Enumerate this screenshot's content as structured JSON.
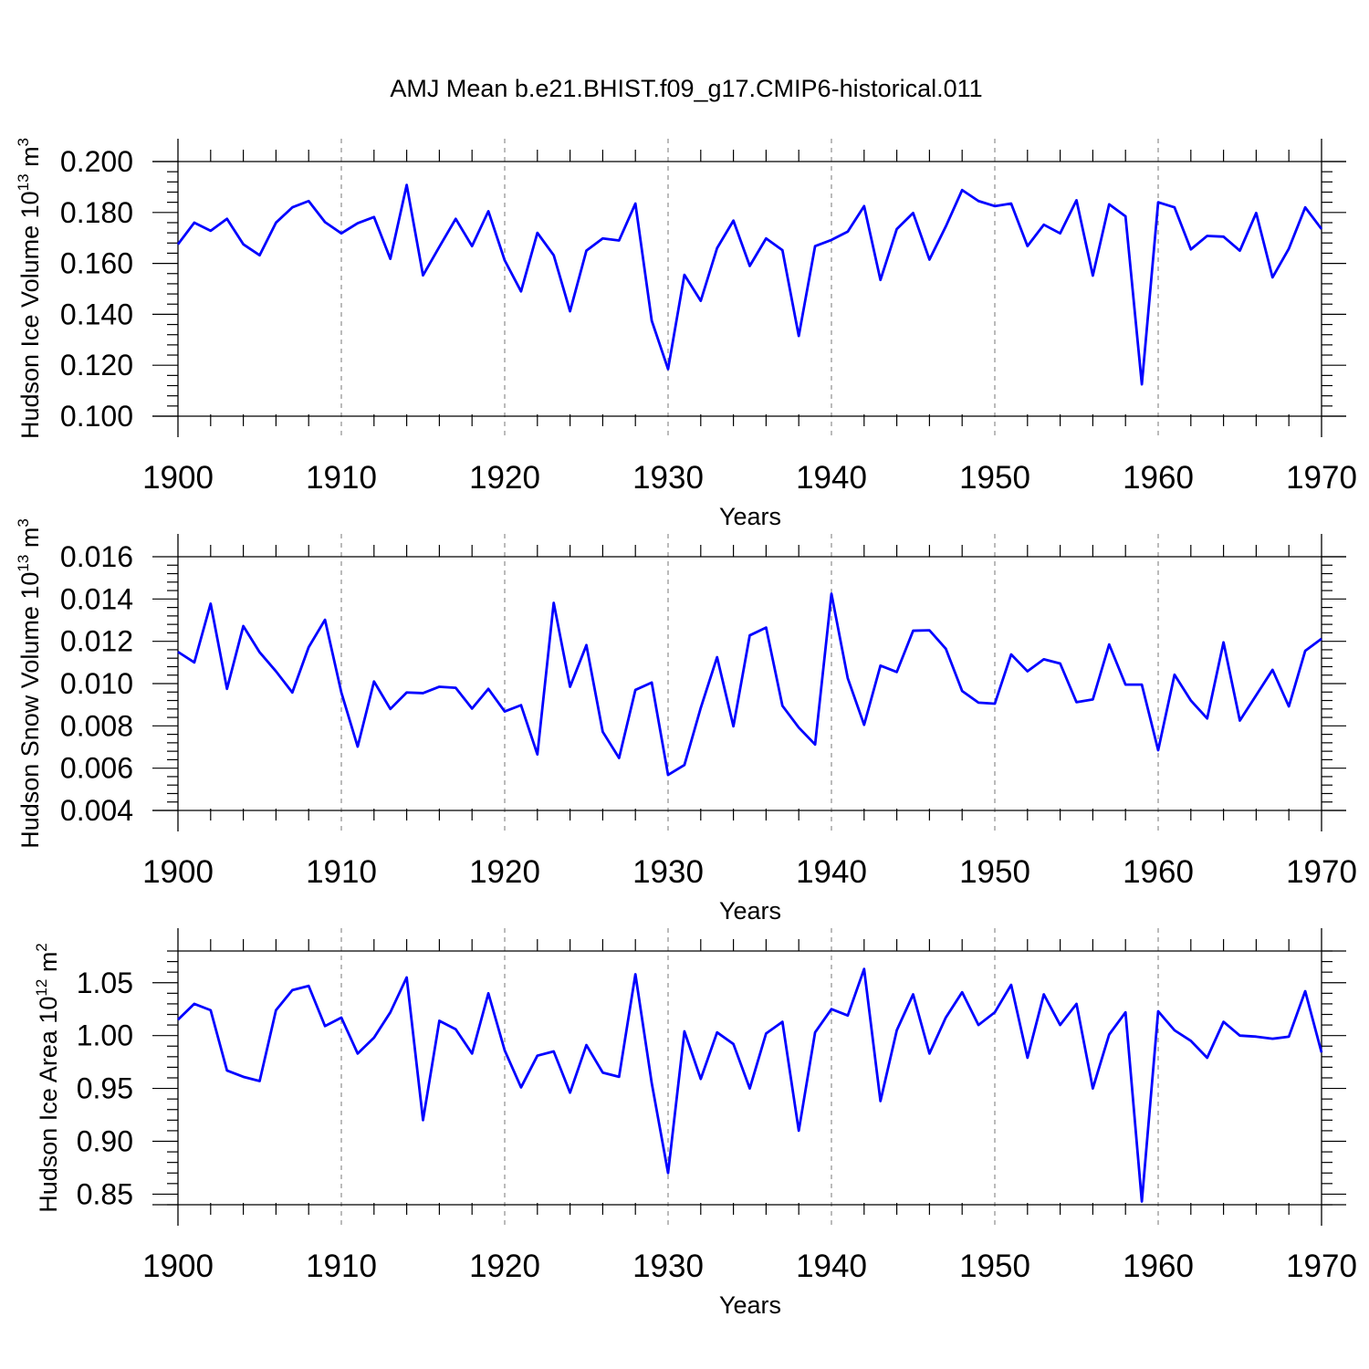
{
  "title": "AMJ Mean b.e21.BHIST.f09_g17.CMIP6-historical.011",
  "chart_data": [
    {
      "type": "line",
      "ylabel": "Hudson Ice Volume 10",
      "ylabel_exp": "13",
      "ylabel_unit": " m",
      "ylabel_unit_exp": "3",
      "xlabel": "Years",
      "xlim": [
        1900,
        1970
      ],
      "ylim": [
        0.1,
        0.2
      ],
      "x_ticks": [
        "1900",
        "1910",
        "1920",
        "1930",
        "1940",
        "1950",
        "1960",
        "1970"
      ],
      "y_ticks": [
        "0.100",
        "0.120",
        "0.140",
        "0.160",
        "0.180",
        "0.200"
      ],
      "y_tick_values": [
        0.1,
        0.12,
        0.14,
        0.16,
        0.18,
        0.2
      ],
      "grid": "vertical dashed at decades",
      "series": [
        {
          "name": "ice_volume",
          "color": "#0000ff",
          "x_start": 1900,
          "values": [
            0.1675,
            0.176,
            0.1728,
            0.1775,
            0.1675,
            0.1632,
            0.176,
            0.182,
            0.1845,
            0.1762,
            0.1718,
            0.1758,
            0.1782,
            0.1618,
            0.1908,
            0.1553,
            0.1665,
            0.1775,
            0.1668,
            0.1805,
            0.1612,
            0.149,
            0.172,
            0.1632,
            0.1412,
            0.165,
            0.1698,
            0.169,
            0.1835,
            0.1375,
            0.1185,
            0.1555,
            0.1453,
            0.166,
            0.1768,
            0.159,
            0.1698,
            0.1652,
            0.1315,
            0.1668,
            0.1692,
            0.1725,
            0.1825,
            0.1535,
            0.1735,
            0.1798,
            0.1615,
            0.1745,
            0.1888,
            0.1845,
            0.1825,
            0.1835,
            0.1668,
            0.1752,
            0.1718,
            0.1848,
            0.1552,
            0.1832,
            0.1785,
            0.1125,
            0.184,
            0.182,
            0.1655,
            0.1708,
            0.1705,
            0.165,
            0.1798,
            0.1545,
            0.1658,
            0.182,
            0.1735
          ]
        }
      ]
    },
    {
      "type": "line",
      "ylabel": "Hudson Snow Volume 10",
      "ylabel_exp": "13",
      "ylabel_unit": " m",
      "ylabel_unit_exp": "3",
      "xlabel": "Years",
      "xlim": [
        1900,
        1970
      ],
      "ylim": [
        0.004,
        0.016
      ],
      "x_ticks": [
        "1900",
        "1910",
        "1920",
        "1930",
        "1940",
        "1950",
        "1960",
        "1970"
      ],
      "y_ticks": [
        "0.004",
        "0.006",
        "0.008",
        "0.010",
        "0.012",
        "0.014",
        "0.016"
      ],
      "y_tick_values": [
        0.004,
        0.006,
        0.008,
        0.01,
        0.012,
        0.014,
        0.016
      ],
      "grid": "vertical dashed at decades",
      "series": [
        {
          "name": "snow_volume",
          "color": "#0000ff",
          "x_start": 1900,
          "values": [
            0.0115,
            0.011,
            0.01378,
            0.00975,
            0.01272,
            0.01148,
            0.01058,
            0.00958,
            0.01172,
            0.01302,
            0.00958,
            0.00702,
            0.0101,
            0.0088,
            0.00958,
            0.00955,
            0.00985,
            0.0098,
            0.00882,
            0.00975,
            0.00868,
            0.00898,
            0.00665,
            0.01382,
            0.00985,
            0.01182,
            0.00772,
            0.00648,
            0.0097,
            0.01005,
            0.00568,
            0.00615,
            0.00885,
            0.01125,
            0.00798,
            0.01228,
            0.01265,
            0.00895,
            0.00792,
            0.00712,
            0.01425,
            0.01025,
            0.00805,
            0.01085,
            0.01055,
            0.0125,
            0.01252,
            0.01165,
            0.00965,
            0.0091,
            0.00905,
            0.01138,
            0.01058,
            0.01115,
            0.01095,
            0.00912,
            0.00925,
            0.01185,
            0.00995,
            0.00995,
            0.00685,
            0.01042,
            0.0092,
            0.00835,
            0.01195,
            0.00825,
            0.00945,
            0.01065,
            0.00892,
            0.01155,
            0.01212
          ]
        }
      ]
    },
    {
      "type": "line",
      "ylabel": "Hudson Ice Area 10",
      "ylabel_exp": "12",
      "ylabel_unit": " m",
      "ylabel_unit_exp": "2",
      "xlabel": "Years",
      "xlim": [
        1900,
        1970
      ],
      "ylim": [
        0.84,
        1.08
      ],
      "x_ticks": [
        "1900",
        "1910",
        "1920",
        "1930",
        "1940",
        "1950",
        "1960",
        "1970"
      ],
      "y_ticks": [
        "0.85",
        "0.90",
        "0.95",
        "1.00",
        "1.05"
      ],
      "y_tick_values": [
        0.85,
        0.9,
        0.95,
        1.0,
        1.05
      ],
      "grid": "vertical dashed at decades",
      "series": [
        {
          "name": "ice_area",
          "color": "#0000ff",
          "x_start": 1900,
          "values": [
            1.015,
            1.03,
            1.024,
            0.967,
            0.961,
            0.957,
            1.024,
            1.043,
            1.047,
            1.009,
            1.017,
            0.983,
            0.998,
            1.022,
            1.055,
            0.92,
            1.014,
            1.006,
            0.983,
            1.04,
            0.986,
            0.951,
            0.981,
            0.985,
            0.946,
            0.991,
            0.965,
            0.961,
            1.058,
            0.955,
            0.87,
            1.004,
            0.959,
            1.003,
            0.992,
            0.95,
            1.002,
            1.013,
            0.91,
            1.003,
            1.025,
            1.019,
            1.063,
            0.938,
            1.005,
            1.039,
            0.983,
            1.017,
            1.041,
            1.01,
            1.022,
            1.048,
            0.979,
            1.039,
            1.01,
            1.03,
            0.95,
            1.001,
            1.022,
            0.843,
            1.023,
            1.005,
            0.995,
            0.979,
            1.013,
            1.0,
            0.999,
            0.997,
            0.999,
            1.042,
            0.984
          ]
        }
      ]
    }
  ]
}
